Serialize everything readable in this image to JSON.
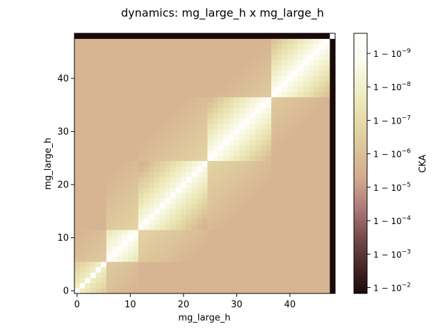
{
  "chart_data": {
    "type": "heatmap",
    "title": "dynamics: mg_large_h x mg_large_h",
    "xlabel": "mg_large_h",
    "ylabel": "mg_large_h",
    "n": 49,
    "xlim": [
      -0.5,
      48.5
    ],
    "ylim": [
      -0.5,
      48.5
    ],
    "x_ticks": [
      0,
      10,
      20,
      30,
      40
    ],
    "y_ticks": [
      0,
      10,
      20,
      30,
      40
    ],
    "x_tick_labels": [
      "0",
      "10",
      "20",
      "30",
      "40"
    ],
    "y_tick_labels": [
      "0",
      "10",
      "20",
      "30",
      "40"
    ],
    "blocks": [
      {
        "start": 0,
        "end": 5
      },
      {
        "start": 6,
        "end": 11
      },
      {
        "start": 12,
        "end": 24
      },
      {
        "start": 25,
        "end": 36
      },
      {
        "start": 37,
        "end": 47
      }
    ],
    "dead_layer": 48,
    "colorbar": {
      "label": "CKA",
      "scale": "log(1 - CKA)",
      "range_one_minus_cka": [
        0.015,
        2.5e-10
      ],
      "ticks": [
        {
          "exp": -9,
          "label": "1 − 10",
          "sup": "−9"
        },
        {
          "exp": -8,
          "label": "1 − 10",
          "sup": "−8"
        },
        {
          "exp": -7,
          "label": "1 − 10",
          "sup": "−7"
        },
        {
          "exp": -6,
          "label": "1 − 10",
          "sup": "−6"
        },
        {
          "exp": -5,
          "label": "1 − 10",
          "sup": "−5"
        },
        {
          "exp": -4,
          "label": "1 − 10",
          "sup": "−4"
        },
        {
          "exp": -3,
          "label": "1 − 10",
          "sup": "−3"
        },
        {
          "exp": -2,
          "label": "1 − 10",
          "sup": "−2"
        }
      ],
      "colors": [
        "#1c0a0a",
        "#4a2a2a",
        "#7a4d4d",
        "#b07c7c",
        "#d4aa8e",
        "#dcc49a",
        "#e6dca8",
        "#f0efc6",
        "#fbfbee",
        "#ffffff"
      ]
    }
  }
}
